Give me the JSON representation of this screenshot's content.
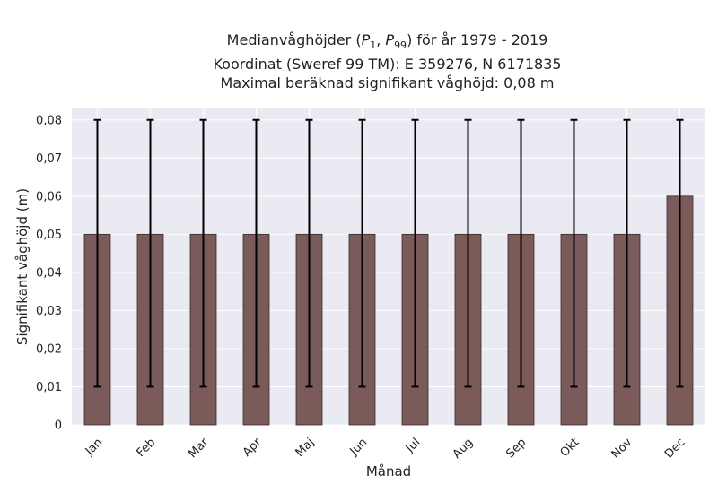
{
  "chart_data": {
    "type": "bar",
    "title_lines": [
      "Medianvåghöjder (P1, P99) för år 1979 - 2019",
      "Koordinat (Sweref 99 TM): E 359276, N 6171835",
      "Maximal beräknad signifikant våghöjd: 0,08 m"
    ],
    "xlabel": "Månad",
    "ylabel": "Signifikant våghöjd (m)",
    "categories": [
      "Jan",
      "Feb",
      "Mar",
      "Apr",
      "Maj",
      "Jun",
      "Jul",
      "Aug",
      "Sep",
      "Okt",
      "Nov",
      "Dec"
    ],
    "values": [
      0.05,
      0.05,
      0.05,
      0.05,
      0.05,
      0.05,
      0.05,
      0.05,
      0.05,
      0.05,
      0.05,
      0.06
    ],
    "p1": [
      0.01,
      0.01,
      0.01,
      0.01,
      0.01,
      0.01,
      0.01,
      0.01,
      0.01,
      0.01,
      0.01,
      0.01
    ],
    "p99": [
      0.08,
      0.08,
      0.08,
      0.08,
      0.08,
      0.08,
      0.08,
      0.08,
      0.08,
      0.08,
      0.08,
      0.08
    ],
    "ylim": [
      0,
      0.083
    ],
    "yticks": [
      0,
      0.01,
      0.02,
      0.03,
      0.04,
      0.05,
      0.06,
      0.07,
      0.08
    ],
    "ytick_labels": [
      "0",
      "0,01",
      "0,02",
      "0,03",
      "0,04",
      "0,05",
      "0,06",
      "0,07",
      "0,08"
    ],
    "grid": true,
    "colors": {
      "bar": "#7b5a5a",
      "bar_edge": "#3a2a2a",
      "error": "#000000",
      "plot_bg": "#eaeaf2",
      "grid": "#ffffff"
    }
  }
}
